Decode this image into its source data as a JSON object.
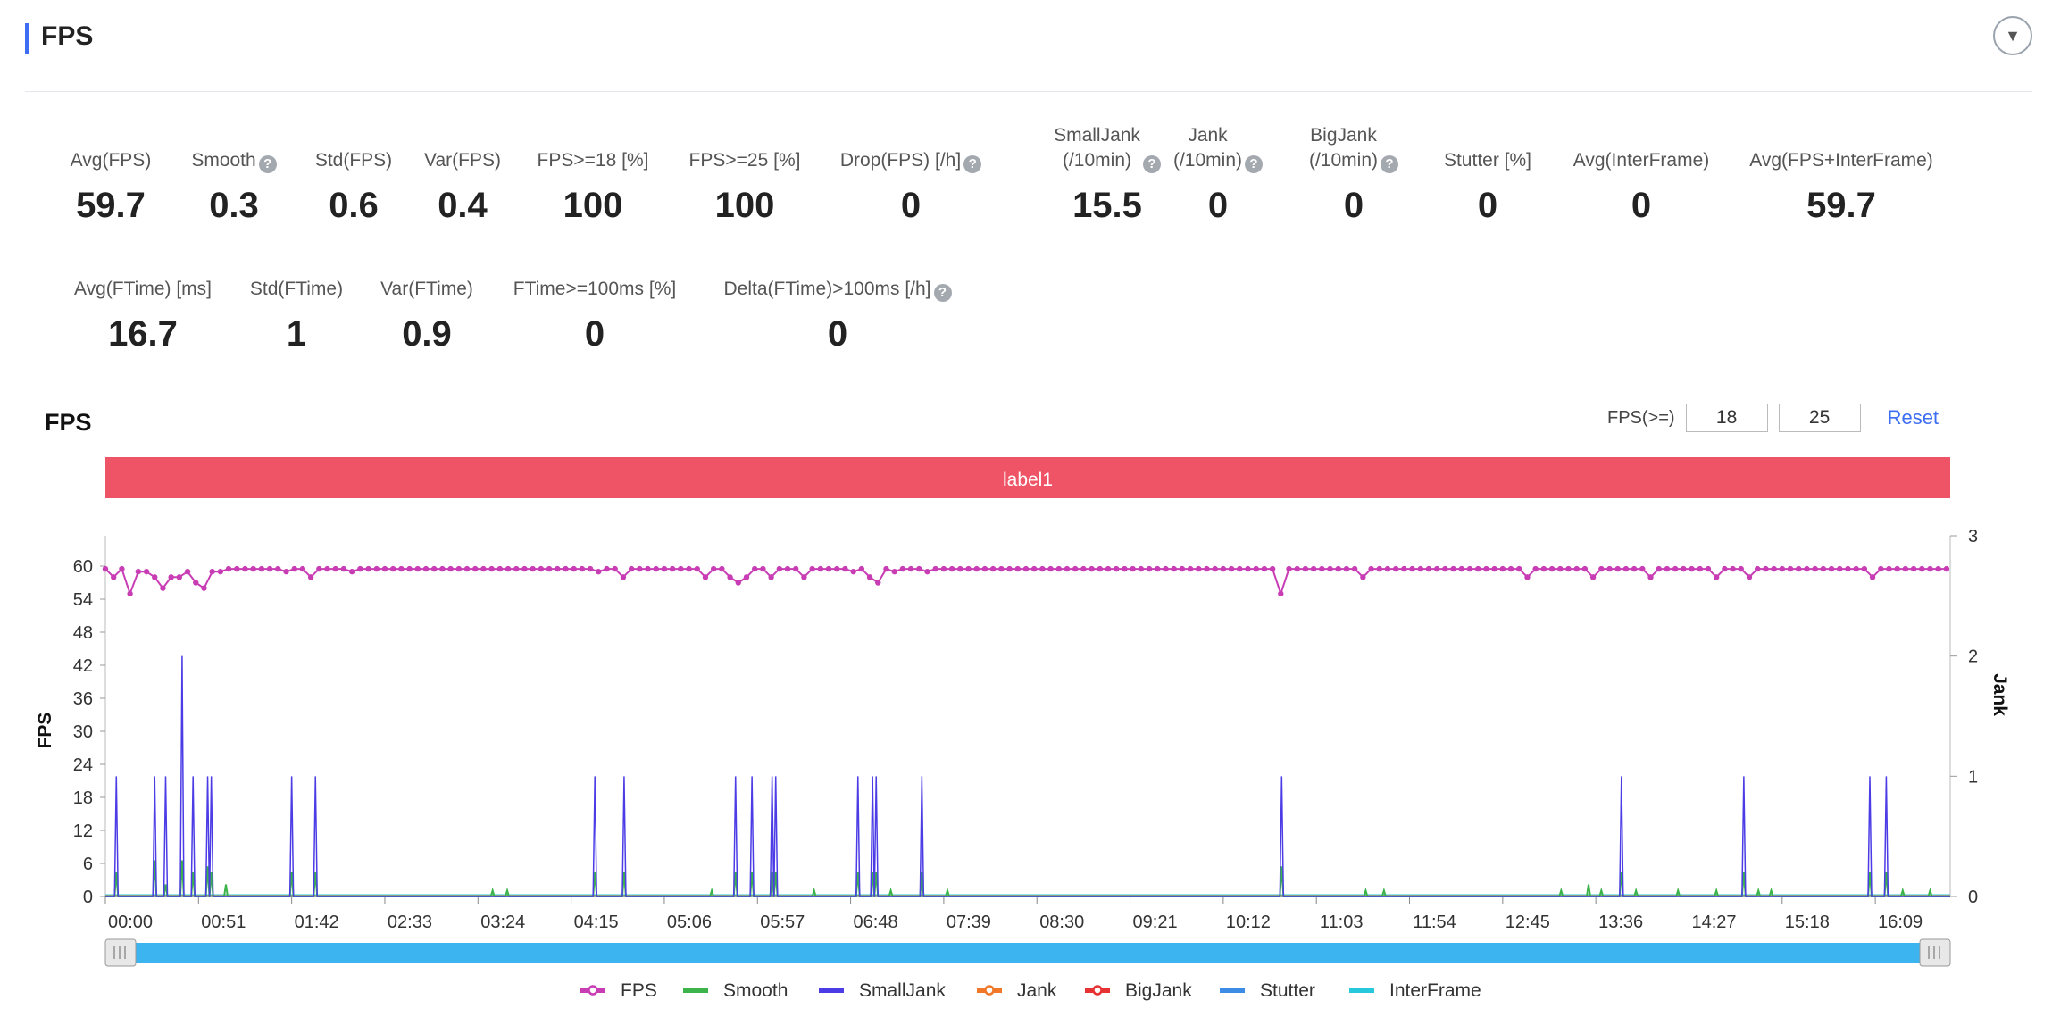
{
  "header": {
    "title": "FPS"
  },
  "metrics_row1": [
    {
      "label": "Avg(FPS)",
      "value": "59.7",
      "help": false
    },
    {
      "label": "Smooth",
      "value": "0.3",
      "help": true
    },
    {
      "label": "Std(FPS)",
      "value": "0.6",
      "help": false
    },
    {
      "label": "Var(FPS)",
      "value": "0.4",
      "help": false
    },
    {
      "label": "FPS>=18 [%]",
      "value": "100",
      "help": false
    },
    {
      "label": "FPS>=25 [%]",
      "value": "100",
      "help": false
    },
    {
      "label": "Drop(FPS) [/h]",
      "value": "0",
      "help": true
    },
    {
      "label": "SmallJank\n(/10min)",
      "value": "15.5",
      "help": true
    },
    {
      "label": "Jank\n(/10min)",
      "value": "0",
      "help": true
    },
    {
      "label": "BigJank\n(/10min)",
      "value": "0",
      "help": true
    },
    {
      "label": "Stutter [%]",
      "value": "0",
      "help": false
    },
    {
      "label": "Avg(InterFrame)",
      "value": "0",
      "help": false
    },
    {
      "label": "Avg(FPS+InterFrame)",
      "value": "59.7",
      "help": false
    }
  ],
  "metrics_row2": [
    {
      "label": "Avg(FTime) [ms]",
      "value": "16.7",
      "help": false
    },
    {
      "label": "Std(FTime)",
      "value": "1",
      "help": false
    },
    {
      "label": "Var(FTime)",
      "value": "0.9",
      "help": false
    },
    {
      "label": "FTime>=100ms [%]",
      "value": "0",
      "help": false
    },
    {
      "label": "Delta(FTime)>100ms [/h]",
      "value": "0",
      "help": true
    }
  ],
  "controls": {
    "fps_label": "FPS(>=)",
    "threshold1": "18",
    "threshold2": "25",
    "reset_label": "Reset"
  },
  "colors": {
    "fps": "#c83cb4",
    "smooth": "#3cb44b",
    "smalljank": "#4b3ce6",
    "jank": "#f07828",
    "bigjank": "#e63232",
    "stutter": "#3c8ce6",
    "interframe": "#28c8dc",
    "label_band": "#ef5466",
    "slider": "#3cb4f0"
  },
  "chart_data": {
    "type": "line",
    "title": "FPS",
    "label_band": "label1",
    "xlabel": "",
    "ylabel": "FPS",
    "y2label": "Jank",
    "x_duration_sec": 1010,
    "x_ticks": [
      "00:00",
      "00:51",
      "01:42",
      "02:33",
      "03:24",
      "04:15",
      "05:06",
      "05:57",
      "06:48",
      "07:39",
      "08:30",
      "09:21",
      "10:12",
      "11:03",
      "11:54",
      "12:45",
      "13:36",
      "14:27",
      "15:18",
      "16:09"
    ],
    "y_ticks": [
      0,
      6,
      12,
      18,
      24,
      30,
      36,
      42,
      48,
      54,
      60
    ],
    "y2_ticks": [
      0,
      1,
      2,
      3
    ],
    "ylim": [
      0,
      66
    ],
    "y2lim": [
      0,
      3
    ],
    "legend": [
      "FPS",
      "Smooth",
      "SmallJank",
      "Jank",
      "BigJank",
      "Stutter",
      "InterFrame"
    ],
    "legend_position": "bottom",
    "fps_baseline": 59.5,
    "fps_dips": [
      [
        4,
        58
      ],
      [
        6,
        58
      ],
      [
        12,
        55
      ],
      [
        16,
        59
      ],
      [
        19,
        58
      ],
      [
        23,
        59
      ],
      [
        26,
        58
      ],
      [
        30,
        56
      ],
      [
        34,
        58
      ],
      [
        36,
        55
      ],
      [
        39,
        58
      ],
      [
        41,
        58
      ],
      [
        44,
        59
      ],
      [
        47,
        58
      ],
      [
        51,
        57
      ],
      [
        53,
        56
      ],
      [
        55,
        58
      ],
      [
        57,
        59
      ],
      [
        64,
        59
      ],
      [
        100,
        59
      ],
      [
        113,
        58
      ],
      [
        133,
        59
      ],
      [
        268,
        59
      ],
      [
        271,
        56
      ],
      [
        285,
        58
      ],
      [
        330,
        58
      ],
      [
        342,
        58
      ],
      [
        345,
        57
      ],
      [
        353,
        58
      ],
      [
        364,
        58
      ],
      [
        382,
        58
      ],
      [
        409,
        59
      ],
      [
        411,
        58
      ],
      [
        419,
        58
      ],
      [
        421,
        57
      ],
      [
        424,
        58
      ],
      [
        432,
        59
      ],
      [
        448,
        59
      ],
      [
        644,
        55
      ],
      [
        689,
        58
      ],
      [
        779,
        58
      ],
      [
        816,
        58
      ],
      [
        848,
        58
      ],
      [
        883,
        58
      ],
      [
        898,
        58
      ],
      [
        967,
        58
      ],
      [
        1011,
        58
      ]
    ],
    "smalljank_spikes": [
      [
        6,
        1
      ],
      [
        27,
        1
      ],
      [
        33,
        1
      ],
      [
        42,
        2
      ],
      [
        48,
        1
      ],
      [
        56,
        1
      ],
      [
        58,
        1
      ],
      [
        102,
        1
      ],
      [
        115,
        1
      ],
      [
        268,
        1
      ],
      [
        284,
        1
      ],
      [
        345,
        1
      ],
      [
        354,
        1
      ],
      [
        365,
        1
      ],
      [
        367,
        1
      ],
      [
        412,
        1
      ],
      [
        420,
        1
      ],
      [
        422,
        1
      ],
      [
        447,
        1
      ],
      [
        644,
        1
      ],
      [
        830,
        1
      ],
      [
        897,
        1
      ],
      [
        966,
        1
      ],
      [
        975,
        1
      ]
    ],
    "smooth_spikes": [
      [
        6,
        0.2
      ],
      [
        27,
        0.3
      ],
      [
        33,
        0.1
      ],
      [
        42,
        0.3
      ],
      [
        48,
        0.2
      ],
      [
        56,
        0.25
      ],
      [
        58,
        0.2
      ],
      [
        66,
        0.1
      ],
      [
        102,
        0.2
      ],
      [
        115,
        0.2
      ],
      [
        212,
        0.05
      ],
      [
        220,
        0.05
      ],
      [
        268,
        0.2
      ],
      [
        284,
        0.2
      ],
      [
        332,
        0.05
      ],
      [
        345,
        0.2
      ],
      [
        354,
        0.2
      ],
      [
        365,
        0.2
      ],
      [
        367,
        0.2
      ],
      [
        388,
        0.05
      ],
      [
        412,
        0.2
      ],
      [
        420,
        0.2
      ],
      [
        422,
        0.2
      ],
      [
        430,
        0.05
      ],
      [
        447,
        0.2
      ],
      [
        461,
        0.05
      ],
      [
        644,
        0.25
      ],
      [
        690,
        0.05
      ],
      [
        700,
        0.05
      ],
      [
        797,
        0.05
      ],
      [
        812,
        0.1
      ],
      [
        819,
        0.05
      ],
      [
        830,
        0.2
      ],
      [
        838,
        0.05
      ],
      [
        861,
        0.05
      ],
      [
        882,
        0.05
      ],
      [
        897,
        0.2
      ],
      [
        905,
        0.05
      ],
      [
        912,
        0.05
      ],
      [
        966,
        0.2
      ],
      [
        975,
        0.2
      ],
      [
        984,
        0.05
      ],
      [
        999,
        0.05
      ]
    ],
    "jank": 0,
    "bigjank": 0,
    "stutter": 0,
    "interframe": 0
  }
}
